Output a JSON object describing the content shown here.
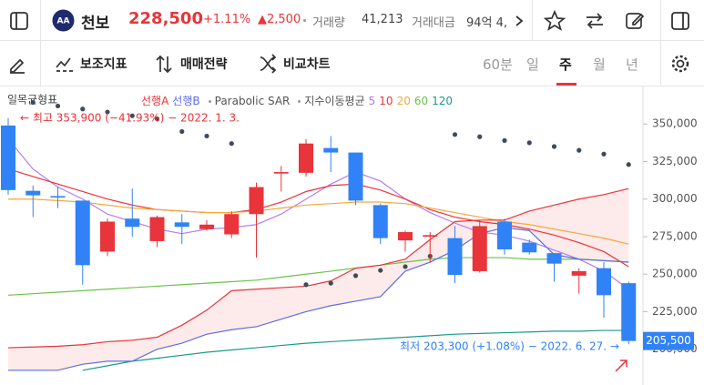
{
  "header": {
    "name": "천보",
    "price": "228,500",
    "change_pct": "+1.11%",
    "change": "▲2,500",
    "volume_label": "거래량",
    "volume": "41,213",
    "amount_label": "거래대금",
    "amount": "94억 4,"
  },
  "toolbar": {
    "tools": [
      "보조지표",
      "매매전략",
      "비교차트"
    ],
    "periods": [
      "60분",
      "일",
      "주",
      "월",
      "년"
    ],
    "selected_period": "주"
  },
  "chart_data": {
    "type": "candlestick",
    "indicator": "일목균형표",
    "ylim": [
      178000,
      375000
    ],
    "yticks": [
      {
        "value": 200000,
        "label": "200,000"
      },
      {
        "value": 225000,
        "label": "225,000"
      },
      {
        "value": 250000,
        "label": "250,000"
      },
      {
        "value": 275000,
        "label": "275,000"
      },
      {
        "value": 300000,
        "label": "300,000"
      },
      {
        "value": 325000,
        "label": "325,000"
      },
      {
        "value": 350000,
        "label": "350,000"
      }
    ],
    "up_color": "#e8343a",
    "down_color": "#3182f6",
    "open": [
      349000,
      305500,
      302000,
      299000,
      265000,
      287000,
      272000,
      284500,
      280000,
      276500,
      290000,
      317000,
      317500,
      334000,
      331000,
      296000,
      272500,
      275000,
      274000,
      252000,
      285000,
      271000,
      264000,
      249000,
      254000,
      244000
    ],
    "high": [
      353900,
      309000,
      308000,
      299000,
      287000,
      307000,
      289000,
      290000,
      286000,
      292000,
      311000,
      322000,
      340000,
      342000,
      331000,
      297000,
      279000,
      278000,
      282000,
      286000,
      287000,
      273000,
      264000,
      254000,
      258000,
      245000
    ],
    "low": [
      303000,
      288000,
      294000,
      243000,
      262000,
      275000,
      268000,
      270000,
      279000,
      274000,
      261000,
      305000,
      315000,
      318000,
      296000,
      270000,
      265000,
      258000,
      244000,
      251000,
      263000,
      263000,
      245000,
      237000,
      221000,
      203300
    ],
    "close": [
      306000,
      302500,
      301000,
      256000,
      285000,
      281500,
      288000,
      281500,
      283000,
      290000,
      308000,
      318000,
      337000,
      331000,
      299000,
      274000,
      278000,
      276000,
      249500,
      282000,
      266500,
      264500,
      257000,
      252000,
      236000,
      205500
    ],
    "cloud_color": "#fdeaea",
    "series": [
      {
        "name": "선행A",
        "color": "#e8343a",
        "values": [
          201000,
          201500,
          202000,
          203000,
          205000,
          206000,
          208000,
          216000,
          226000,
          239000,
          240000,
          241000,
          242000,
          245500,
          254000,
          256000,
          260000,
          273000,
          285000,
          286000,
          286000,
          292000,
          296000,
          300000,
          303000,
          307000
        ]
      },
      {
        "name": "선행B",
        "color": "#5b6ee8",
        "values": [
          186000,
          186000,
          186000,
          190000,
          192000,
          192000,
          200000,
          204000,
          210000,
          213000,
          215000,
          220000,
          225000,
          229000,
          232000,
          235000,
          252000,
          258000,
          266000,
          277000,
          281000,
          279000,
          263000,
          260000,
          259000,
          258000
        ]
      },
      {
        "name": "Parabolic SAR",
        "color": "#3d4b5c",
        "style": "dots",
        "values": [
          null,
          364400,
          362000,
          360000,
          358000,
          355500,
          353500,
          345000,
          342000,
          337000,
          null,
          null,
          243000,
          244000,
          249000,
          252500,
          255000,
          262000,
          343000,
          341500,
          339000,
          337500,
          335000,
          332500,
          330000,
          323000
        ]
      }
    ],
    "ma_group": "지수이동평균",
    "ma_series": [
      {
        "name": "5",
        "color": "#b57bf0",
        "values": [
          340000,
          320000,
          308000,
          300000,
          290000,
          285000,
          280000,
          277000,
          280000,
          281000,
          283000,
          290000,
          300000,
          310000,
          318000,
          312000,
          300000,
          291000,
          284000,
          278000,
          276000,
          272000,
          266000,
          260000,
          252000,
          240000
        ]
      },
      {
        "name": "10",
        "color": "#e8343a",
        "values": [
          320000,
          315000,
          310000,
          305000,
          300000,
          296000,
          293000,
          292000,
          291000,
          291000,
          293000,
          298000,
          305000,
          309000,
          310000,
          306000,
          300000,
          293000,
          288000,
          285000,
          283000,
          280000,
          276000,
          271000,
          265000,
          255000
        ]
      },
      {
        "name": "20",
        "color": "#f2a93b",
        "values": [
          300000,
          300000,
          299000,
          298000,
          296000,
          294000,
          293000,
          292000,
          291000,
          291000,
          292000,
          294000,
          296000,
          297000,
          298000,
          298000,
          297000,
          294000,
          291000,
          288000,
          285000,
          283000,
          280000,
          277000,
          274000,
          270000
        ]
      },
      {
        "name": "60",
        "color": "#6cc24a",
        "values": [
          236000,
          237000,
          238000,
          239000,
          240000,
          241000,
          242000,
          243000,
          244000,
          245000,
          246000,
          248000,
          250000,
          252000,
          254000,
          256000,
          258000,
          260000,
          261000,
          261000,
          261000,
          260000,
          260000,
          260000,
          259000,
          258000
        ]
      },
      {
        "name": "120",
        "color": "#1a9a8a",
        "values": [
          null,
          null,
          null,
          186000,
          189000,
          192000,
          194000,
          196000,
          198000,
          199500,
          201000,
          202500,
          204000,
          205000,
          206000,
          207000,
          208000,
          209000,
          210000,
          210500,
          211000,
          211500,
          212000,
          212000,
          212500,
          212500
        ]
      }
    ],
    "high_annotation": "← 최고 353,900 (−41.93%) − 2022. 1. 3.",
    "low_annotation": "최저 203,300 (+1.08%) − 2022. 6. 27. →",
    "last_label": "205,500"
  }
}
